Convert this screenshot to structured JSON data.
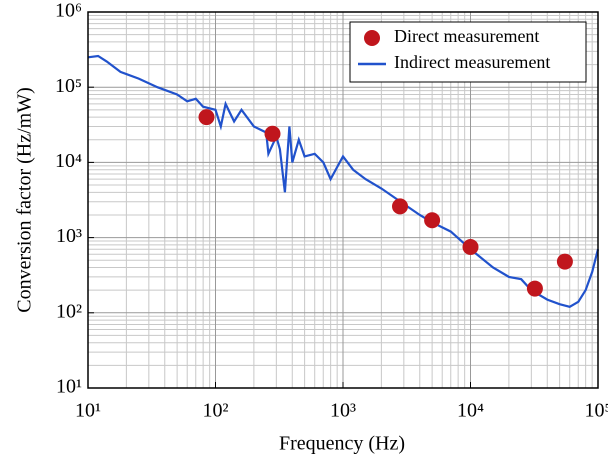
{
  "chart_data": {
    "type": "line",
    "xlabel": "Frequency (Hz)",
    "ylabel": "Conversion factor (Hz/mW)",
    "xscale": "log",
    "yscale": "log",
    "xlim": [
      10,
      100000
    ],
    "ylim": [
      10,
      1000000
    ],
    "xticks": [
      {
        "value": 10,
        "label": "10¹"
      },
      {
        "value": 100,
        "label": "10²"
      },
      {
        "value": 1000,
        "label": "10³"
      },
      {
        "value": 10000,
        "label": "10⁴"
      },
      {
        "value": 100000,
        "label": "10⁵"
      }
    ],
    "yticks": [
      {
        "value": 10,
        "label": "10¹"
      },
      {
        "value": 100,
        "label": "10²"
      },
      {
        "value": 1000,
        "label": "10³"
      },
      {
        "value": 10000,
        "label": "10⁴"
      },
      {
        "value": 100000,
        "label": "10⁵"
      },
      {
        "value": 1000000,
        "label": "10⁶"
      }
    ],
    "xminorticks": [
      20,
      30,
      40,
      50,
      60,
      70,
      80,
      90,
      200,
      300,
      400,
      500,
      600,
      700,
      800,
      900,
      2000,
      3000,
      4000,
      5000,
      6000,
      7000,
      8000,
      9000,
      20000,
      30000,
      40000,
      50000,
      60000,
      70000,
      80000,
      90000
    ],
    "yminorticks": [
      20,
      30,
      40,
      50,
      60,
      70,
      80,
      90,
      200,
      300,
      400,
      500,
      600,
      700,
      800,
      900,
      2000,
      3000,
      4000,
      5000,
      6000,
      7000,
      8000,
      9000,
      20000,
      30000,
      40000,
      50000,
      60000,
      70000,
      80000,
      90000,
      200000,
      300000,
      400000,
      500000,
      600000,
      700000,
      800000,
      900000
    ],
    "grid": true,
    "legend": "upper right",
    "series": [
      {
        "name": "Direct measurement",
        "type": "scatter",
        "color": "#c0161d",
        "x": [
          85,
          280,
          2800,
          5000,
          10000,
          32000,
          55000
        ],
        "values": [
          40000,
          24000,
          2600,
          1700,
          750,
          210,
          480
        ]
      },
      {
        "name": "Indirect measurement",
        "type": "line",
        "color": "#2152cc",
        "x": [
          10,
          12,
          14,
          18,
          25,
          35,
          50,
          60,
          70,
          80,
          100,
          110,
          120,
          140,
          160,
          200,
          250,
          260,
          300,
          320,
          350,
          380,
          400,
          450,
          500,
          600,
          700,
          800,
          1000,
          1200,
          1500,
          2000,
          3000,
          4000,
          5000,
          7000,
          10000,
          15000,
          20000,
          25000,
          30000,
          40000,
          50000,
          60000,
          70000,
          80000,
          90000,
          100000
        ],
        "values": [
          250000,
          260000,
          220000,
          160000,
          130000,
          100000,
          80000,
          65000,
          70000,
          55000,
          50000,
          30000,
          60000,
          35000,
          50000,
          30000,
          25000,
          13000,
          22000,
          15000,
          4000,
          30000,
          10000,
          20000,
          12000,
          13000,
          10000,
          6000,
          12000,
          8000,
          6000,
          4500,
          2800,
          2000,
          1600,
          1200,
          700,
          400,
          300,
          280,
          200,
          150,
          130,
          120,
          140,
          200,
          350,
          700
        ]
      }
    ]
  }
}
